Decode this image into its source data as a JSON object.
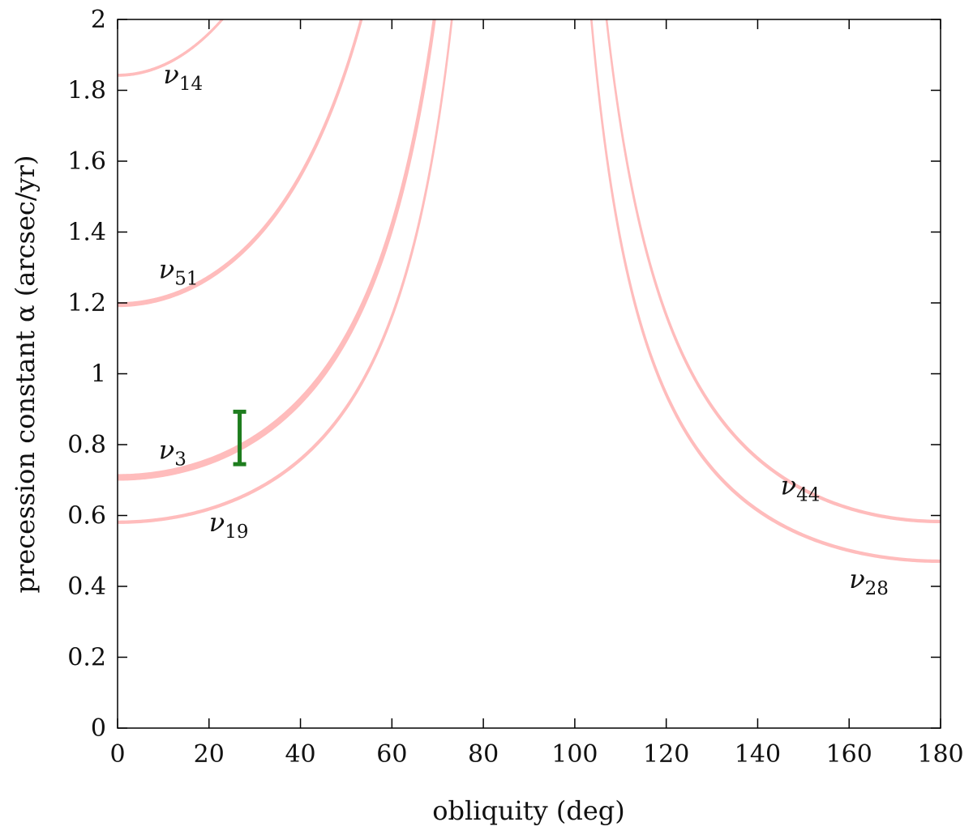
{
  "chart_data": {
    "type": "area",
    "xlabel": "obliquity (deg)",
    "ylabel": "precession constant α (arcsec/yr)",
    "xlim": [
      0,
      180
    ],
    "ylim": [
      0,
      2
    ],
    "xticks": [
      0,
      20,
      40,
      60,
      80,
      100,
      120,
      140,
      160,
      180
    ],
    "yticks": [
      0,
      0.2,
      0.4,
      0.6,
      0.8,
      1,
      1.2,
      1.4,
      1.6,
      1.8,
      2
    ],
    "ytick_labels": [
      "0",
      "0.2",
      "0.4",
      "0.6",
      "0.8",
      "1",
      "1.2",
      "1.4",
      "1.6",
      "1.8",
      "2"
    ],
    "grid": false,
    "band_color": "#ffbcbc",
    "error_bar_color": "#1e7d1e",
    "series": [
      {
        "name": "ν14",
        "greek": "ν",
        "sub": "14",
        "base_low": 1.84,
        "base_high": 1.845,
        "side": "prograde",
        "label_at": [
          10,
          1.82
        ]
      },
      {
        "name": "ν51",
        "greek": "ν",
        "sub": "51",
        "base_low": 1.19,
        "base_high": 1.2,
        "side": "prograde",
        "label_at": [
          9,
          1.27
        ]
      },
      {
        "name": "ν3",
        "greek": "ν",
        "sub": "3",
        "base_low": 0.7,
        "base_high": 0.715,
        "side": "prograde",
        "label_at": [
          9,
          0.76
        ]
      },
      {
        "name": "ν19",
        "greek": "ν",
        "sub": "19",
        "base_low": 0.578,
        "base_high": 0.584,
        "side": "prograde",
        "label_at": [
          20,
          0.555
        ]
      },
      {
        "name": "ν44",
        "greek": "ν",
        "sub": "44",
        "base_low": 0.58,
        "base_high": 0.586,
        "side": "retrograde",
        "label_at": [
          145,
          0.66
        ]
      },
      {
        "name": "ν28",
        "greek": "ν",
        "sub": "28",
        "base_low": 0.468,
        "base_high": 0.474,
        "side": "retrograde",
        "label_at": [
          160,
          0.395
        ]
      }
    ],
    "error_bar": {
      "x": 26.7,
      "y_low": 0.745,
      "y_high": 0.893
    }
  }
}
